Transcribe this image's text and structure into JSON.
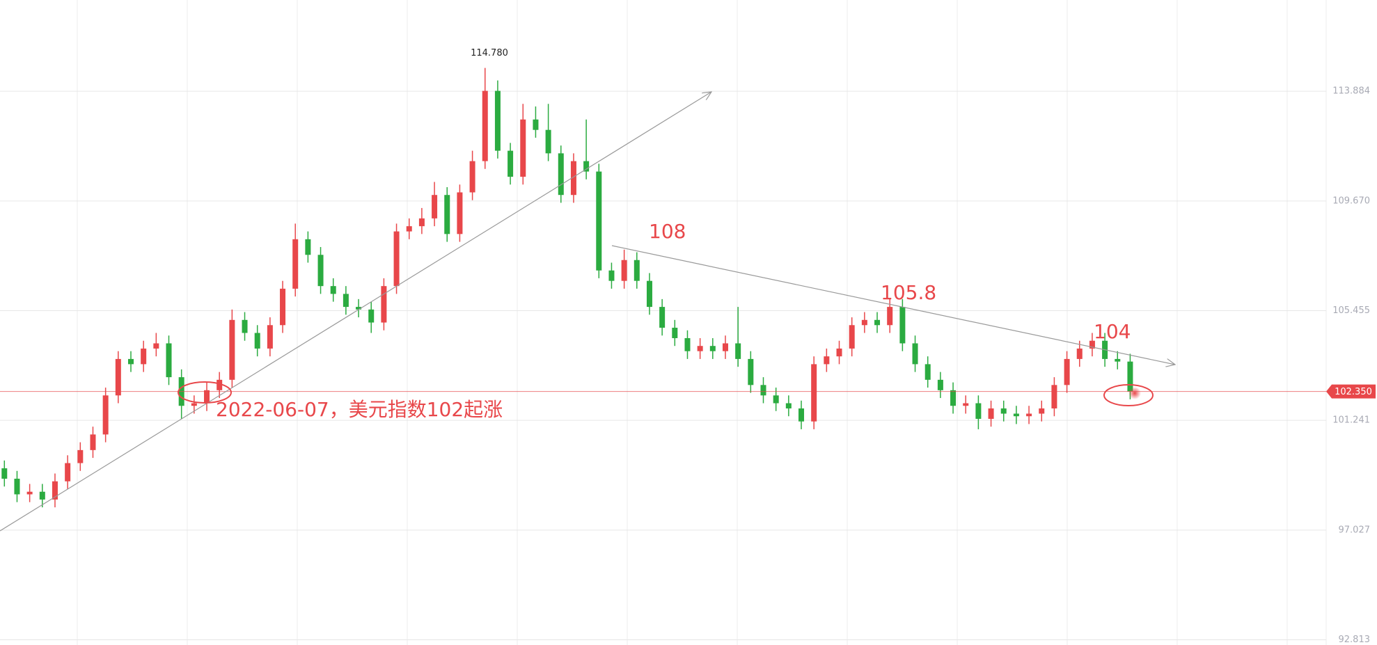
{
  "chart_data": {
    "type": "candlestick",
    "open": [
      99.4,
      99.0,
      98.4,
      98.5,
      98.2,
      98.9,
      99.6,
      100.1,
      100.7,
      102.2,
      103.6,
      103.4,
      104.0,
      104.2,
      102.9,
      101.8,
      101.9,
      102.4,
      102.8,
      105.1,
      104.6,
      104.0,
      104.9,
      106.3,
      108.2,
      107.6,
      106.4,
      106.1,
      105.6,
      105.5,
      105.0,
      106.4,
      108.5,
      108.7,
      109.0,
      109.9,
      108.4,
      110.0,
      111.2,
      113.9,
      111.6,
      110.6,
      112.8,
      112.4,
      111.5,
      109.9,
      111.2,
      110.8,
      107.0,
      106.6,
      107.4,
      106.6,
      105.6,
      104.8,
      104.4,
      103.9,
      104.1,
      103.9,
      104.2,
      103.6,
      102.6,
      102.2,
      101.9,
      101.7,
      101.2,
      103.4,
      103.7,
      104.0,
      104.9,
      105.1,
      104.9,
      105.6,
      104.2,
      103.4,
      102.8,
      102.4,
      101.8,
      101.9,
      101.3,
      101.7,
      101.5,
      101.4,
      101.5,
      101.7,
      102.6,
      103.6,
      104.0,
      104.3,
      103.6,
      103.5
    ],
    "high": [
      99.7,
      99.3,
      98.8,
      98.8,
      99.2,
      99.9,
      100.4,
      101.0,
      102.5,
      103.9,
      103.9,
      104.3,
      104.6,
      104.5,
      103.2,
      102.2,
      102.7,
      103.1,
      105.5,
      105.4,
      104.9,
      105.2,
      106.6,
      108.8,
      108.5,
      107.9,
      106.7,
      106.4,
      105.9,
      105.8,
      106.7,
      108.8,
      109.0,
      109.4,
      110.4,
      110.2,
      110.3,
      111.6,
      114.78,
      114.3,
      111.9,
      113.4,
      113.3,
      113.4,
      111.8,
      111.5,
      112.8,
      111.1,
      107.3,
      107.8,
      107.7,
      106.9,
      105.9,
      105.1,
      104.7,
      104.4,
      104.4,
      104.5,
      105.6,
      103.9,
      102.9,
      102.5,
      102.2,
      102.0,
      103.7,
      104.0,
      104.3,
      105.2,
      105.4,
      105.4,
      105.9,
      105.9,
      104.5,
      103.7,
      103.1,
      102.7,
      102.2,
      102.2,
      102.0,
      102.0,
      101.8,
      101.8,
      102.0,
      102.9,
      103.9,
      104.3,
      104.6,
      104.6,
      103.9,
      103.8
    ],
    "low": [
      98.7,
      98.1,
      98.1,
      97.9,
      97.9,
      98.6,
      99.3,
      99.8,
      100.4,
      101.9,
      103.1,
      103.1,
      103.7,
      102.6,
      101.3,
      101.5,
      101.6,
      102.1,
      102.5,
      104.3,
      103.7,
      103.7,
      104.6,
      106.0,
      107.3,
      106.1,
      105.8,
      105.3,
      105.2,
      104.6,
      104.7,
      106.1,
      108.2,
      108.4,
      108.7,
      108.1,
      108.1,
      109.7,
      110.9,
      111.3,
      110.3,
      110.3,
      112.1,
      111.2,
      109.6,
      109.6,
      110.5,
      106.7,
      106.3,
      106.3,
      106.3,
      105.3,
      104.5,
      104.1,
      103.6,
      103.6,
      103.6,
      103.6,
      103.3,
      102.3,
      101.9,
      101.6,
      101.4,
      100.9,
      100.9,
      103.1,
      103.4,
      103.7,
      104.6,
      104.6,
      104.6,
      103.9,
      103.1,
      102.5,
      102.1,
      101.5,
      101.5,
      100.9,
      101.0,
      101.2,
      101.1,
      101.1,
      101.2,
      101.4,
      102.3,
      103.3,
      103.7,
      103.3,
      103.2,
      102.05
    ],
    "close": [
      99.0,
      98.4,
      98.5,
      98.2,
      98.9,
      99.6,
      100.1,
      100.7,
      102.2,
      103.6,
      103.4,
      104.0,
      104.2,
      102.9,
      101.8,
      101.9,
      102.4,
      102.8,
      105.1,
      104.6,
      104.0,
      104.9,
      106.3,
      108.2,
      107.6,
      106.4,
      106.1,
      105.6,
      105.5,
      105.0,
      106.4,
      108.5,
      108.7,
      109.0,
      109.9,
      108.4,
      110.0,
      111.2,
      113.9,
      111.6,
      110.6,
      112.8,
      112.4,
      111.5,
      109.9,
      111.2,
      110.8,
      107.0,
      106.6,
      107.4,
      106.6,
      105.6,
      104.8,
      104.4,
      103.9,
      104.1,
      103.9,
      104.2,
      103.6,
      102.6,
      102.2,
      101.9,
      101.7,
      101.2,
      103.4,
      103.7,
      104.0,
      104.9,
      105.1,
      104.9,
      105.6,
      104.2,
      103.4,
      102.8,
      102.4,
      101.8,
      101.9,
      101.3,
      101.7,
      101.5,
      101.4,
      101.5,
      101.7,
      102.6,
      103.6,
      104.0,
      104.3,
      103.6,
      103.5,
      102.35
    ],
    "up_color": "#e8474a",
    "down_color": "#2bab40",
    "ylim": [
      92.612,
      117.39
    ],
    "yticks": [
      92.813,
      97.027,
      101.241,
      105.455,
      {
        "value": 109.67,
        "label": "109.670"
      },
      113.884
    ],
    "grid": true,
    "last_price": {
      "value": 102.35,
      "label": "102.350"
    },
    "annotations": [
      "114.780",
      "108",
      "105.8",
      "104",
      "2022-06-07，美元指数102起涨"
    ]
  }
}
